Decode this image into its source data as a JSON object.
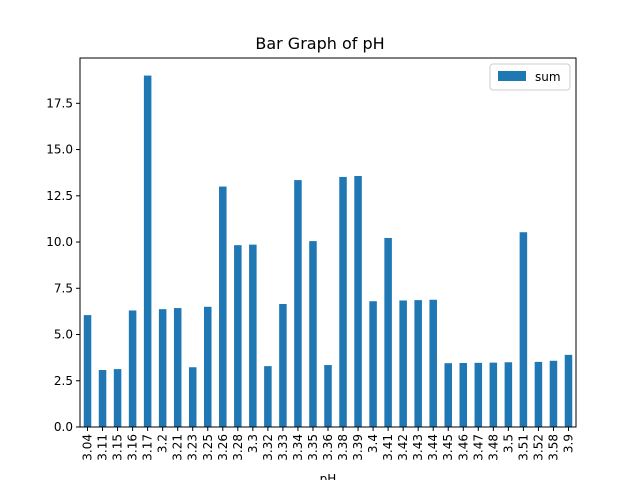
{
  "chart_data": {
    "type": "bar",
    "title": "Bar Graph of pH",
    "xlabel": "pH",
    "ylabel": "",
    "ylim": [
      0,
      19.95
    ],
    "yticks": [
      "0.0",
      "2.5",
      "5.0",
      "7.5",
      "10.0",
      "12.5",
      "15.0",
      "17.5"
    ],
    "ytick_values": [
      0,
      2.5,
      5,
      7.5,
      10,
      12.5,
      15,
      17.5
    ],
    "categories": [
      "3.04",
      "3.11",
      "3.15",
      "3.16",
      "3.17",
      "3.2",
      "3.21",
      "3.23",
      "3.25",
      "3.26",
      "3.28",
      "3.3",
      "3.32",
      "3.33",
      "3.34",
      "3.35",
      "3.36",
      "3.38",
      "3.39",
      "3.4",
      "3.41",
      "3.42",
      "3.43",
      "3.44",
      "3.45",
      "3.46",
      "3.47",
      "3.48",
      "3.5",
      "3.51",
      "3.52",
      "3.58",
      "3.9"
    ],
    "series": [
      {
        "name": "sum",
        "color": "#1f77b4",
        "values": [
          6.05,
          3.08,
          3.13,
          6.3,
          19.0,
          6.37,
          6.43,
          3.23,
          6.5,
          13.0,
          9.83,
          9.86,
          3.29,
          6.65,
          13.35,
          10.05,
          3.35,
          13.52,
          13.57,
          6.8,
          10.22,
          6.84,
          6.86,
          6.88,
          3.45,
          3.46,
          3.47,
          3.48,
          3.5,
          10.53,
          3.52,
          3.58,
          3.9
        ]
      }
    ],
    "legend": {
      "position": "top-right",
      "label": "sum"
    },
    "grid": false
  }
}
